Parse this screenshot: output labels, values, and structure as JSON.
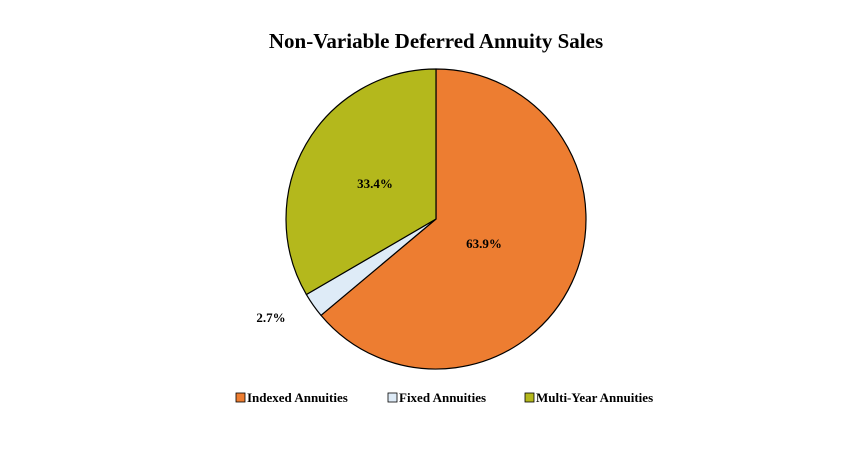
{
  "chart_data": {
    "type": "pie",
    "title": "Non-Variable Deferred Annuity Sales",
    "start_angle_deg": 0,
    "direction": "clockwise",
    "legend_position": "bottom",
    "slices": [
      {
        "name": "Indexed Annuities",
        "value": 63.9,
        "label": "63.9%",
        "color": "#ED7D31"
      },
      {
        "name": "Fixed Annuities",
        "value": 2.7,
        "label": "2.7%",
        "color": "#DEEBF7"
      },
      {
        "name": "Multi-Year Annuities",
        "value": 33.4,
        "label": "33.4%",
        "color": "#B4B81C"
      }
    ]
  }
}
